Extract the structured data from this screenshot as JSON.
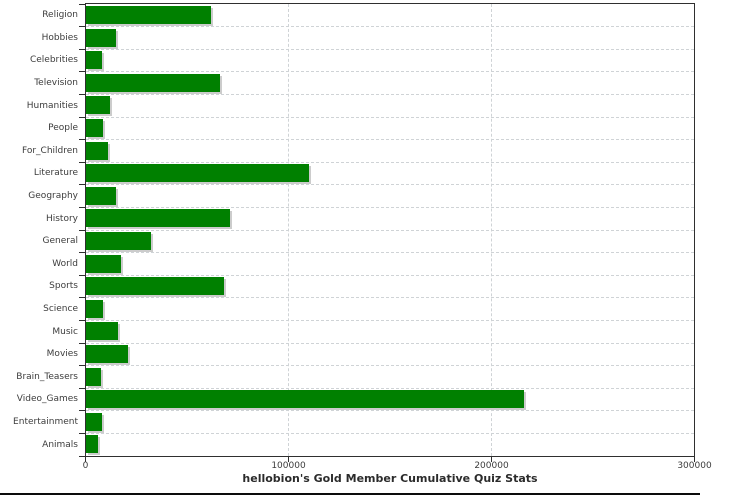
{
  "chart_data": {
    "type": "bar",
    "orientation": "horizontal",
    "title": "hellobion's Gold Member Cumulative Quiz Stats",
    "categories": [
      "Religion",
      "Hobbies",
      "Celebrities",
      "Television",
      "Humanities",
      "People",
      "For_Children",
      "Literature",
      "Geography",
      "History",
      "General",
      "World",
      "Sports",
      "Science",
      "Music",
      "Movies",
      "Brain_Teasers",
      "Video_Games",
      "Entertainment",
      "Animals"
    ],
    "values": [
      61500,
      15000,
      8000,
      66000,
      12000,
      8400,
      11000,
      110000,
      14600,
      71000,
      32000,
      17400,
      68000,
      8500,
      15600,
      20500,
      7400,
      216000,
      8000,
      5900
    ],
    "xlabel": "",
    "ylabel": "",
    "xlim": [
      0,
      300000
    ],
    "x_ticks": [
      0,
      100000,
      200000,
      300000
    ],
    "x_tick_labels": [
      "0",
      "100000",
      "200000",
      "300000"
    ],
    "grid": "dashed",
    "legend": "none",
    "colors": {
      "bar": "#008000",
      "bar_shadow": "#cccccc",
      "gridline": "#cfd3d6",
      "plot_border": "#2f2f2f",
      "text": "#3c3c3c",
      "bottom_rule": "#0c0c0c"
    }
  }
}
